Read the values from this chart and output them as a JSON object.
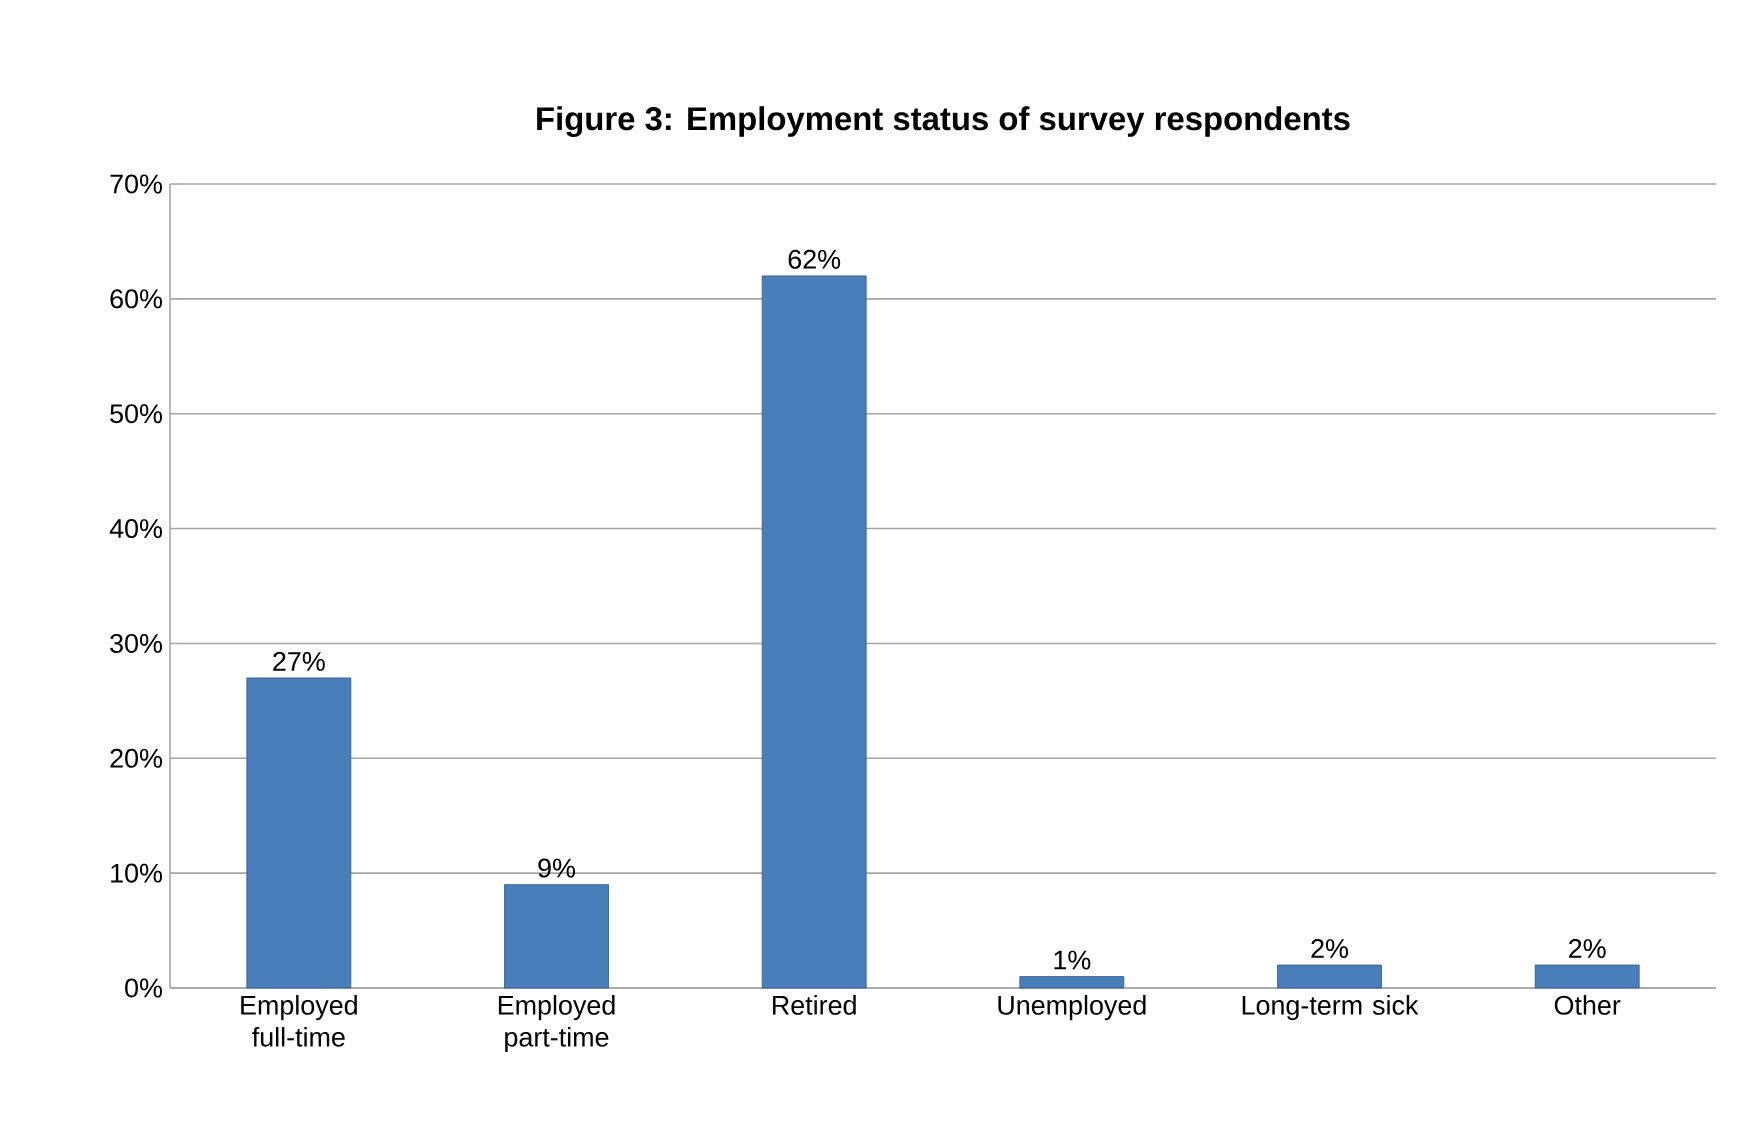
{
  "chart_data": {
    "type": "bar",
    "title": "Figure 3: Employment status of survey respondents",
    "categories": [
      "Employed full-time",
      "Employed part-time",
      "Retired",
      "Unemployed",
      "Long-term sick",
      "Other"
    ],
    "values": [
      27,
      9,
      62,
      1,
      2,
      2
    ],
    "value_labels": [
      "27%",
      "9%",
      "62%",
      "1%",
      "2%",
      "2%"
    ],
    "color": "#4a7ebb",
    "ylim": [
      0,
      70
    ],
    "yticks": [
      {
        "value": 0,
        "label": "0%"
      },
      {
        "value": 10,
        "label": "10%"
      },
      {
        "value": 20,
        "label": "20%"
      },
      {
        "value": 30,
        "label": "30%"
      },
      {
        "value": 40,
        "label": "40%"
      },
      {
        "value": 50,
        "label": "50%"
      },
      {
        "value": 60,
        "label": "60%"
      },
      {
        "value": 70,
        "label": "70%"
      }
    ],
    "grid": "y"
  }
}
